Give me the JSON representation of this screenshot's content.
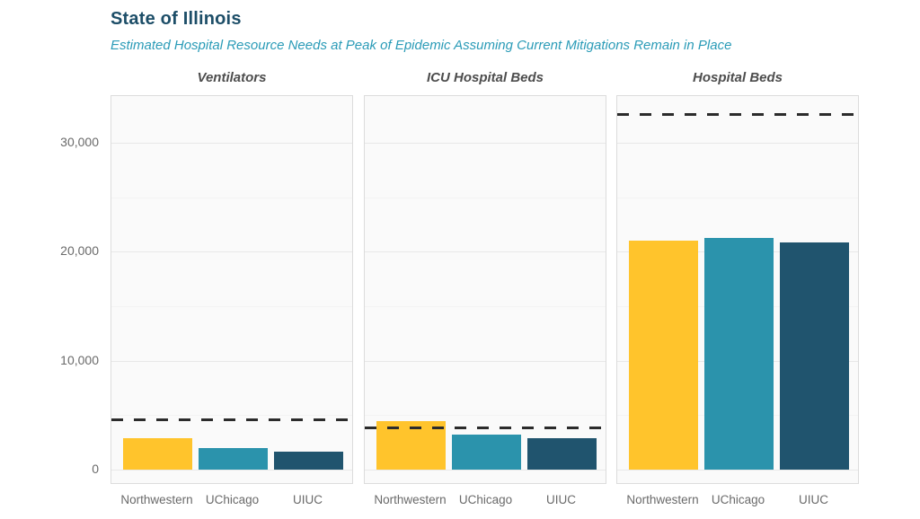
{
  "header": {
    "title": "State of Illinois",
    "subtitle": "Estimated Hospital Resource Needs at Peak of Epidemic Assuming Current Mitigations Remain in Place"
  },
  "colors": {
    "title_text": "#1d4e68",
    "subtitle_text": "#2a9bb7",
    "panel_title_text": "#4d4d4d",
    "axis_tick_text": "#6a6a6a",
    "panel_background": "#fafafa",
    "panel_border": "#dcdcdc",
    "grid_major": "#e8e8e8",
    "grid_minor": "#f3f3f3",
    "capacity_line": "#2b2b2b",
    "series": [
      "#ffc42c",
      "#2b93ac",
      "#20546e"
    ]
  },
  "chart_data": {
    "type": "bar",
    "layout": "small-multiples, 3 panels sharing one y-axis, grid on, no legend",
    "categories": [
      "Northwestern",
      "UChicago",
      "UIUC"
    ],
    "panels": [
      {
        "title": "Ventilators",
        "values": [
          2900,
          1950,
          1650
        ],
        "capacity_line": 4600
      },
      {
        "title": "ICU Hospital Beds",
        "values": [
          4450,
          3250,
          2900
        ],
        "capacity_line": 3800
      },
      {
        "title": "Hospital Beds",
        "values": [
          21000,
          21300,
          20900
        ],
        "capacity_line": 32600
      }
    ],
    "series_note": "one bar per institution model: Northwestern (yellow), UChicago (teal), UIUC (navy); dashed black line = estimated current capacity",
    "ylim": [
      -1400,
      34300
    ],
    "yticks": [
      0,
      10000,
      20000,
      30000
    ],
    "ytick_labels": [
      "0",
      "10,000",
      "20,000",
      "30,000"
    ],
    "minor_yticks": [
      5000,
      15000,
      25000
    ],
    "xlabel": "",
    "ylabel": ""
  }
}
